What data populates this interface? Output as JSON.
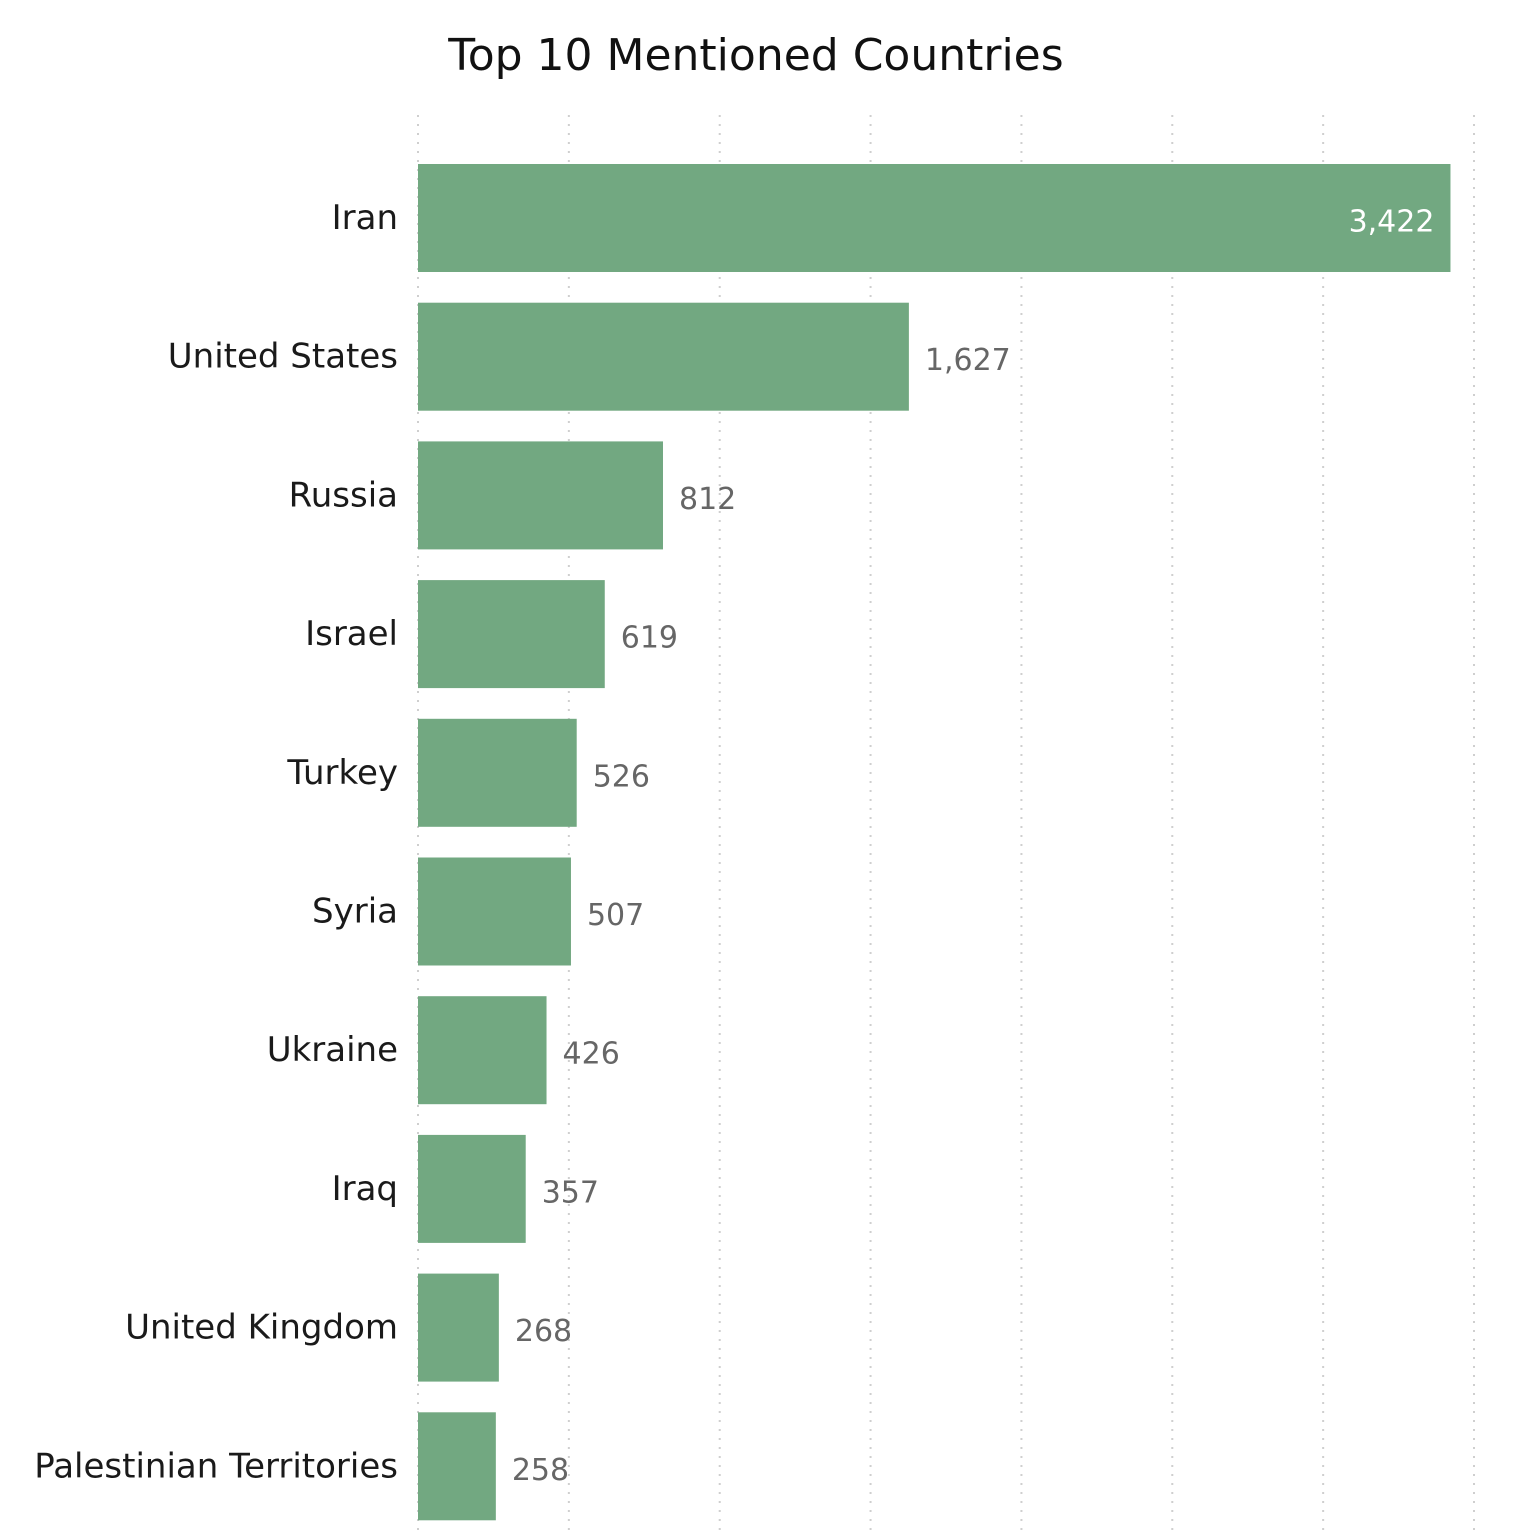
{
  "chart_data": {
    "type": "bar",
    "orientation": "horizontal",
    "title": "Top 10 Mentioned Countries",
    "categories": [
      "Iran",
      "United States",
      "Russia",
      "Israel",
      "Turkey",
      "Syria",
      "Ukraine",
      "Iraq",
      "United Kingdom",
      "Palestinian Territories"
    ],
    "values": [
      3422,
      1627,
      812,
      619,
      526,
      507,
      426,
      357,
      268,
      258
    ],
    "value_labels": [
      "3,422",
      "1,627",
      "812",
      "619",
      "526",
      "507",
      "426",
      "357",
      "268",
      "258"
    ],
    "xlim": [
      0,
      3500
    ],
    "grid": true,
    "legend": "none",
    "bar_color": "#72a881"
  }
}
